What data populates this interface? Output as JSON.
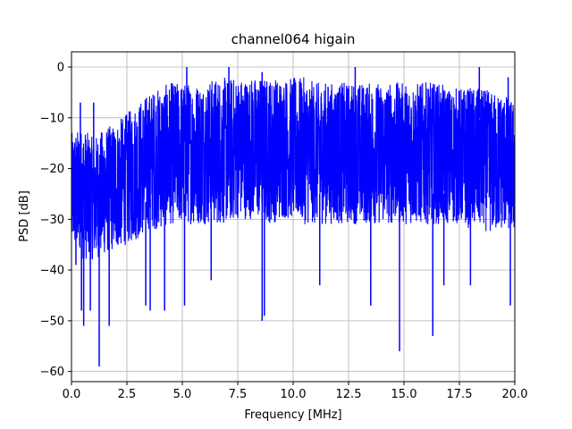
{
  "chart_data": {
    "type": "line",
    "title": "channel064 higain",
    "xlabel": "Frequency [MHz]",
    "ylabel": "PSD [dB]",
    "xlim": [
      0.0,
      20.0
    ],
    "ylim": [
      -62,
      3
    ],
    "x_ticks": [
      "0.0",
      "2.5",
      "5.0",
      "7.5",
      "10.0",
      "12.5",
      "15.0",
      "17.5",
      "20.0"
    ],
    "y_ticks": [
      "0",
      "−10",
      "−20",
      "−30",
      "−40",
      "−50",
      "−60"
    ],
    "x_tick_values": [
      0,
      2.5,
      5,
      7.5,
      10,
      12.5,
      15,
      17.5,
      20
    ],
    "y_tick_values": [
      0,
      -10,
      -20,
      -30,
      -40,
      -50,
      -60
    ],
    "grid": true,
    "series": [
      {
        "color": "#0000ff",
        "envelope": {
          "x": [
            0.0,
            0.5,
            1.0,
            1.5,
            2.0,
            2.5,
            3.0,
            3.5,
            4.0,
            4.5,
            5.0,
            5.5,
            6.0,
            6.5,
            7.0,
            7.5,
            8.0,
            8.5,
            9.0,
            9.5,
            10.0,
            10.5,
            11.0,
            11.5,
            12.0,
            12.5,
            13.0,
            13.5,
            14.0,
            14.5,
            15.0,
            15.5,
            16.0,
            16.5,
            17.0,
            17.5,
            18.0,
            18.5,
            19.0,
            19.5,
            20.0
          ],
          "upper": [
            -13,
            -12,
            -14,
            -12,
            -11,
            -9,
            -7,
            -5,
            -4,
            -3,
            -3,
            -3,
            -3,
            -2,
            -2,
            -2,
            -2,
            -2,
            -2,
            -2,
            -2,
            -2,
            -3,
            -3,
            -3,
            -3,
            -3,
            -3,
            -3,
            -3,
            -3,
            -3,
            -3,
            -3,
            -4,
            -4,
            -4,
            -4,
            -5,
            -5,
            -7
          ],
          "lower": [
            -35,
            -38,
            -38,
            -37,
            -36,
            -35,
            -34,
            -32,
            -32,
            -31,
            -31,
            -31,
            -31,
            -31,
            -31,
            -30,
            -30,
            -30,
            -31,
            -30,
            -30,
            -31,
            -31,
            -31,
            -31,
            -31,
            -31,
            -31,
            -31,
            -31,
            -31,
            -31,
            -31,
            -31,
            -31,
            -31,
            -32,
            -32,
            -33,
            -32,
            -33
          ]
        },
        "peaks": [
          {
            "x": 0.4,
            "y": -7
          },
          {
            "x": 1.0,
            "y": -7
          },
          {
            "x": 5.2,
            "y": 0
          },
          {
            "x": 7.1,
            "y": 0
          },
          {
            "x": 8.6,
            "y": -1
          },
          {
            "x": 12.8,
            "y": 0
          },
          {
            "x": 18.4,
            "y": 0
          },
          {
            "x": 19.7,
            "y": -2
          }
        ],
        "dips": [
          {
            "x": 0.2,
            "y": -39
          },
          {
            "x": 0.45,
            "y": -48
          },
          {
            "x": 0.55,
            "y": -51
          },
          {
            "x": 0.85,
            "y": -48
          },
          {
            "x": 1.25,
            "y": -59
          },
          {
            "x": 1.7,
            "y": -51
          },
          {
            "x": 3.35,
            "y": -47
          },
          {
            "x": 3.55,
            "y": -48
          },
          {
            "x": 4.2,
            "y": -48
          },
          {
            "x": 5.1,
            "y": -47
          },
          {
            "x": 6.3,
            "y": -42
          },
          {
            "x": 8.6,
            "y": -50
          },
          {
            "x": 8.7,
            "y": -49
          },
          {
            "x": 11.2,
            "y": -43
          },
          {
            "x": 13.5,
            "y": -47
          },
          {
            "x": 14.8,
            "y": -56
          },
          {
            "x": 16.3,
            "y": -53
          },
          {
            "x": 16.8,
            "y": -43
          },
          {
            "x": 18.0,
            "y": -43
          },
          {
            "x": 19.8,
            "y": -47
          }
        ]
      }
    ]
  }
}
